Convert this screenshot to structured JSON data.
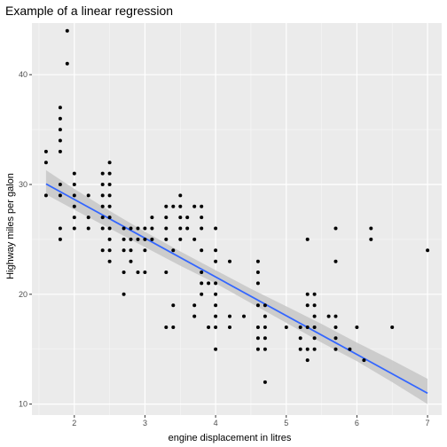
{
  "chart_data": {
    "type": "scatter",
    "title": "Example of a linear regression",
    "xlabel": "engine displacement in litres",
    "ylabel": "Highway miles per galon",
    "xlim": [
      1.4,
      7.2
    ],
    "ylim": [
      9,
      44.7
    ],
    "xticks": [
      2,
      3,
      4,
      5,
      6,
      7
    ],
    "yticks": [
      10,
      20,
      30,
      40
    ],
    "grid": true,
    "legend": "none",
    "colors": {
      "panel": "#ebebeb",
      "grid_major": "#ffffff",
      "points": "#000000",
      "fit_line": "#3366ff",
      "confidence_band": "#c7c7c7"
    },
    "fit": {
      "slope": -3.53,
      "intercept": 35.7,
      "x_range": [
        1.6,
        7.0
      ]
    },
    "band": {
      "x": [
        1.6,
        2.0,
        2.5,
        3.0,
        3.5,
        4.0,
        4.5,
        5.0,
        5.5,
        6.0,
        6.5,
        7.0
      ],
      "lower": [
        29.1,
        27.7,
        26.0,
        24.3,
        22.6,
        21.0,
        19.2,
        17.4,
        15.6,
        13.9,
        12.0,
        10.0
      ],
      "upper": [
        31.3,
        29.6,
        27.6,
        25.7,
        23.9,
        22.2,
        20.5,
        18.9,
        17.3,
        15.6,
        14.0,
        12.3
      ]
    },
    "points": [
      [
        1.6,
        33
      ],
      [
        1.6,
        32
      ],
      [
        1.6,
        29
      ],
      [
        1.8,
        37
      ],
      [
        1.8,
        36
      ],
      [
        1.8,
        35
      ],
      [
        1.8,
        34
      ],
      [
        1.8,
        33
      ],
      [
        1.8,
        30
      ],
      [
        1.8,
        29
      ],
      [
        1.8,
        26
      ],
      [
        1.8,
        25
      ],
      [
        1.9,
        44
      ],
      [
        1.9,
        41
      ],
      [
        2.0,
        31
      ],
      [
        2.0,
        30
      ],
      [
        2.0,
        29
      ],
      [
        2.0,
        28
      ],
      [
        2.0,
        27
      ],
      [
        2.0,
        26
      ],
      [
        2.2,
        29
      ],
      [
        2.2,
        27
      ],
      [
        2.2,
        26
      ],
      [
        2.4,
        31
      ],
      [
        2.4,
        30
      ],
      [
        2.4,
        29
      ],
      [
        2.4,
        28
      ],
      [
        2.4,
        27
      ],
      [
        2.4,
        26
      ],
      [
        2.4,
        24
      ],
      [
        2.5,
        32
      ],
      [
        2.5,
        31
      ],
      [
        2.5,
        30
      ],
      [
        2.5,
        29
      ],
      [
        2.5,
        28
      ],
      [
        2.5,
        27
      ],
      [
        2.5,
        26
      ],
      [
        2.5,
        25
      ],
      [
        2.5,
        24
      ],
      [
        2.5,
        23
      ],
      [
        2.7,
        26
      ],
      [
        2.7,
        25
      ],
      [
        2.7,
        24
      ],
      [
        2.7,
        22
      ],
      [
        2.7,
        20
      ],
      [
        2.8,
        26
      ],
      [
        2.8,
        25
      ],
      [
        2.8,
        24
      ],
      [
        2.8,
        23
      ],
      [
        2.9,
        26
      ],
      [
        2.9,
        25
      ],
      [
        2.9,
        22
      ],
      [
        3.0,
        26
      ],
      [
        3.0,
        25
      ],
      [
        3.0,
        24
      ],
      [
        3.0,
        22
      ],
      [
        3.1,
        27
      ],
      [
        3.1,
        26
      ],
      [
        3.1,
        25
      ],
      [
        3.3,
        28
      ],
      [
        3.3,
        27
      ],
      [
        3.3,
        26
      ],
      [
        3.3,
        25
      ],
      [
        3.3,
        22
      ],
      [
        3.3,
        17
      ],
      [
        3.4,
        28
      ],
      [
        3.4,
        24
      ],
      [
        3.4,
        19
      ],
      [
        3.4,
        17
      ],
      [
        3.5,
        29
      ],
      [
        3.5,
        28
      ],
      [
        3.5,
        27
      ],
      [
        3.5,
        26
      ],
      [
        3.5,
        25
      ],
      [
        3.6,
        27
      ],
      [
        3.6,
        26
      ],
      [
        3.7,
        28
      ],
      [
        3.7,
        25
      ],
      [
        3.7,
        19
      ],
      [
        3.7,
        18
      ],
      [
        3.8,
        28
      ],
      [
        3.8,
        27
      ],
      [
        3.8,
        26
      ],
      [
        3.8,
        24
      ],
      [
        3.8,
        22
      ],
      [
        3.8,
        21
      ],
      [
        3.8,
        20
      ],
      [
        3.9,
        21
      ],
      [
        3.9,
        17
      ],
      [
        4.0,
        26
      ],
      [
        4.0,
        24
      ],
      [
        4.0,
        23
      ],
      [
        4.0,
        21
      ],
      [
        4.0,
        20
      ],
      [
        4.0,
        19
      ],
      [
        4.0,
        18
      ],
      [
        4.0,
        17
      ],
      [
        4.0,
        15
      ],
      [
        4.2,
        23
      ],
      [
        4.2,
        18
      ],
      [
        4.2,
        17
      ],
      [
        4.4,
        18
      ],
      [
        4.6,
        23
      ],
      [
        4.6,
        22
      ],
      [
        4.6,
        21
      ],
      [
        4.6,
        19
      ],
      [
        4.6,
        17
      ],
      [
        4.6,
        16
      ],
      [
        4.6,
        15
      ],
      [
        4.7,
        19
      ],
      [
        4.7,
        18
      ],
      [
        4.7,
        17
      ],
      [
        4.7,
        16
      ],
      [
        4.7,
        15
      ],
      [
        4.7,
        12
      ],
      [
        5.0,
        17
      ],
      [
        5.2,
        17
      ],
      [
        5.2,
        16
      ],
      [
        5.2,
        15
      ],
      [
        5.3,
        25
      ],
      [
        5.3,
        20
      ],
      [
        5.3,
        19
      ],
      [
        5.3,
        17
      ],
      [
        5.3,
        15
      ],
      [
        5.3,
        14
      ],
      [
        5.4,
        20
      ],
      [
        5.4,
        19
      ],
      [
        5.4,
        18
      ],
      [
        5.4,
        17
      ],
      [
        5.4,
        16
      ],
      [
        5.4,
        15
      ],
      [
        5.6,
        18
      ],
      [
        5.7,
        26
      ],
      [
        5.7,
        23
      ],
      [
        5.7,
        18
      ],
      [
        5.7,
        17
      ],
      [
        5.7,
        16
      ],
      [
        5.7,
        15
      ],
      [
        5.9,
        15
      ],
      [
        6.0,
        17
      ],
      [
        6.1,
        14
      ],
      [
        6.2,
        26
      ],
      [
        6.2,
        25
      ],
      [
        6.5,
        17
      ],
      [
        7.0,
        24
      ]
    ]
  }
}
